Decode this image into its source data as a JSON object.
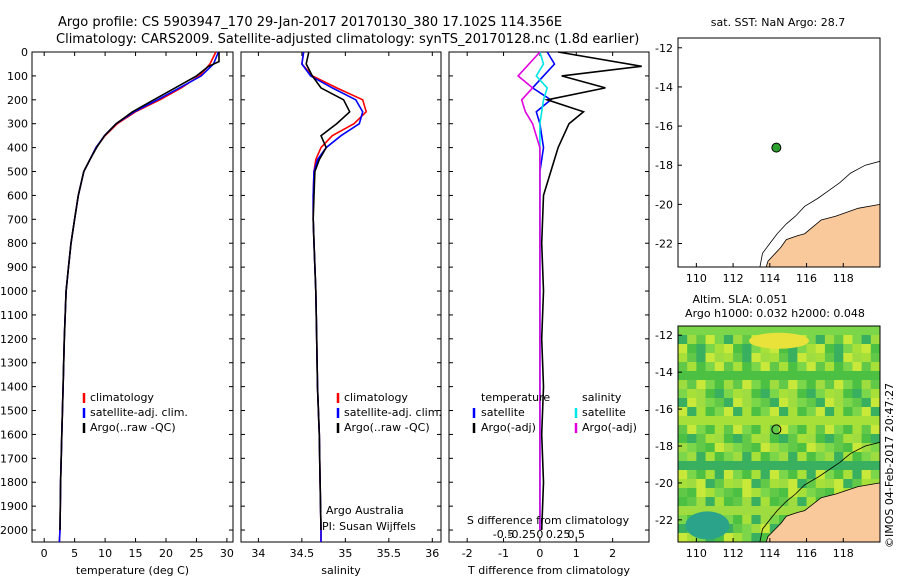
{
  "header": {
    "line1": "Argo profile: CS 5903947_170 29-Jan-2017 20170130_380 17.102S 114.356E",
    "line2": "Climatology: CARS2009. Satellite-adjusted climatology: synTS_20170128.nc (1.8d earlier)"
  },
  "credit": "©IMOS 04-Feb-2017 20:47:27",
  "colors": {
    "climatology": "#ff0000",
    "satellite": "#0000ff",
    "argo": "#000000",
    "salinity_satellite": "#00e5e5",
    "salinity_argo": "#e000e0",
    "land": "#f9c89b",
    "float_marker": "#2ca02c"
  },
  "panels": {
    "temperature": {
      "xlabel": "temperature (deg C)",
      "xticks": [
        "0",
        "5",
        "10",
        "15",
        "20",
        "25",
        "30"
      ],
      "legend": [
        "climatology",
        "satellite-adj. clim.",
        "Argo(..raw -QC)"
      ]
    },
    "salinity": {
      "xlabel": "salinity",
      "xticks": [
        "34",
        "34.5",
        "35",
        "35.5",
        "36"
      ],
      "legend": [
        "climatology",
        "satellite-adj. clim.",
        "Argo(..raw -QC)"
      ],
      "note1": "Argo Australia",
      "note2": "PI: Susan Wijffels"
    },
    "difference": {
      "xlabel": "T difference from climatology",
      "toplabel": "S difference from climatology",
      "xticks_T": [
        "-2",
        "-1",
        "0",
        "1",
        "2"
      ],
      "xticks_S": [
        "-0.5",
        "-0.25",
        "0",
        "0.25",
        "0.5"
      ],
      "legend_T_title": "temperature",
      "legend_S_title": "salinity",
      "legend_T": [
        "satellite",
        "Argo(-adj)"
      ],
      "legend_S": [
        "satellite",
        "Argo(-adj)"
      ]
    },
    "depth_ticks": [
      "0",
      "100",
      "200",
      "300",
      "400",
      "500",
      "600",
      "700",
      "800",
      "900",
      "1000",
      "1100",
      "1200",
      "1300",
      "1400",
      "1500",
      "1600",
      "1700",
      "1800",
      "1900",
      "2000"
    ]
  },
  "maps": {
    "sst": {
      "title": "sat. SST: NaN Argo: 28.7",
      "lat_ticks": [
        "-12",
        "-14",
        "-16",
        "-18",
        "-20",
        "-22"
      ],
      "lon_ticks": [
        "110",
        "112",
        "114",
        "116",
        "118"
      ]
    },
    "sla": {
      "title1": "Altim. SLA: 0.051",
      "title2": "Argo h1000: 0.032 h2000: 0.048",
      "lat_ticks": [
        "-12",
        "-14",
        "-16",
        "-18",
        "-20",
        "-22"
      ],
      "lon_ticks": [
        "110",
        "112",
        "114",
        "116",
        "118"
      ]
    }
  },
  "chart_data": [
    {
      "type": "line",
      "title": "",
      "xlabel": "temperature (deg C)",
      "ylabel": "",
      "xlim": [
        -2,
        31
      ],
      "ylim": [
        2050,
        0
      ],
      "series": [
        {
          "name": "climatology",
          "x": [
            28.2,
            27.2,
            25.5,
            22.5,
            19,
            15,
            12,
            10,
            8.5,
            7.5,
            6.5,
            5.6,
            5,
            4.4,
            4,
            3.6,
            3.3,
            3.1,
            2.9,
            2.7,
            2.6,
            2.5
          ],
          "y": [
            0,
            50,
            100,
            150,
            200,
            250,
            300,
            350,
            400,
            450,
            500,
            600,
            700,
            800,
            900,
            1000,
            1200,
            1400,
            1600,
            1800,
            2000,
            2050
          ]
        },
        {
          "name": "satellite-adj. clim.",
          "x": [
            28.6,
            27.8,
            25.8,
            22.2,
            18.6,
            14.8,
            11.8,
            9.9,
            8.5,
            7.5,
            6.5,
            5.6,
            5,
            4.4,
            4,
            3.6,
            3.3,
            3.1,
            2.9,
            2.7,
            2.6,
            2.5
          ],
          "y": [
            0,
            50,
            100,
            150,
            200,
            250,
            300,
            350,
            400,
            450,
            500,
            600,
            700,
            800,
            900,
            1000,
            1200,
            1400,
            1600,
            1800,
            2000,
            2050
          ]
        },
        {
          "name": "Argo(..raw -QC)",
          "x": [
            28.7,
            28.7,
            27,
            25,
            21.5,
            18,
            14.5,
            11.8,
            9.9,
            8.6,
            7.5,
            6.5,
            5.6,
            5,
            4.4,
            4,
            3.6,
            3.3,
            3.1,
            2.9,
            2.7,
            2.6
          ],
          "y": [
            0,
            40,
            60,
            100,
            150,
            200,
            250,
            300,
            350,
            400,
            450,
            500,
            600,
            700,
            800,
            900,
            1000,
            1200,
            1400,
            1600,
            1800,
            2000
          ]
        }
      ]
    },
    {
      "type": "line",
      "title": "",
      "xlabel": "salinity",
      "ylabel": "",
      "xlim": [
        33.8,
        36.1
      ],
      "ylim": [
        2050,
        0
      ],
      "series": [
        {
          "name": "climatology",
          "x": [
            34.52,
            34.5,
            34.62,
            34.9,
            35.2,
            35.24,
            35.1,
            34.85,
            34.72,
            34.66,
            34.64,
            34.63,
            34.63,
            34.64,
            34.65,
            34.66,
            34.67,
            34.68,
            34.7,
            34.71,
            34.72,
            34.72
          ],
          "y": [
            0,
            50,
            100,
            150,
            200,
            250,
            300,
            350,
            400,
            450,
            500,
            600,
            700,
            800,
            900,
            1000,
            1200,
            1400,
            1600,
            1800,
            2000,
            2050
          ]
        },
        {
          "name": "satellite-adj. clim.",
          "x": [
            34.52,
            34.5,
            34.6,
            34.85,
            35.12,
            35.2,
            35.16,
            34.95,
            34.78,
            34.68,
            34.64,
            34.63,
            34.63,
            34.64,
            34.65,
            34.66,
            34.67,
            34.68,
            34.7,
            34.71,
            34.72,
            34.72
          ],
          "y": [
            0,
            50,
            100,
            150,
            200,
            250,
            300,
            350,
            400,
            450,
            500,
            600,
            700,
            800,
            900,
            1000,
            1200,
            1400,
            1600,
            1800,
            2000,
            2050
          ]
        },
        {
          "name": "Argo(..raw -QC)",
          "x": [
            34.58,
            34.55,
            34.62,
            34.72,
            34.98,
            35.05,
            34.9,
            34.72,
            34.78,
            34.7,
            34.65,
            34.64,
            34.63,
            34.64,
            34.65,
            34.66,
            34.67,
            34.68,
            34.7,
            34.71,
            34.72
          ],
          "y": [
            0,
            50,
            100,
            150,
            200,
            250,
            300,
            350,
            400,
            450,
            500,
            600,
            700,
            800,
            900,
            1000,
            1200,
            1400,
            1600,
            1800,
            2000
          ]
        }
      ]
    },
    {
      "type": "line",
      "title": "",
      "xlabel": "T difference from climatology",
      "ylabel": "",
      "xlim": [
        -2.5,
        3
      ],
      "ylim": [
        2050,
        0
      ],
      "series": [
        {
          "name": "temperature satellite",
          "x": [
            0.2,
            0.4,
            0.1,
            -0.2,
            0.3,
            -0.1,
            0,
            0.1,
            0,
            0,
            0,
            0,
            0,
            0,
            0,
            0
          ],
          "y": [
            0,
            50,
            100,
            150,
            200,
            250,
            300,
            400,
            500,
            700,
            900,
            1100,
            1300,
            1500,
            1800,
            2000
          ]
        },
        {
          "name": "temperature Argo(-adj)",
          "x": [
            0.5,
            2.8,
            0.6,
            1.8,
            0.2,
            1.2,
            0.8,
            0.5,
            0.3,
            0.1,
            0.05,
            0.1,
            0.05,
            0.1,
            0.05,
            0.1,
            0.05
          ],
          "y": [
            0,
            60,
            100,
            150,
            200,
            250,
            300,
            400,
            500,
            600,
            800,
            1000,
            1200,
            1400,
            1600,
            1800,
            2000
          ]
        },
        {
          "name": "salinity satellite",
          "x": [
            0,
            0.1,
            -0.1,
            0.2,
            0.1,
            0,
            0,
            0,
            0,
            0,
            0,
            0,
            0
          ],
          "y": [
            0,
            50,
            100,
            150,
            200,
            300,
            400,
            600,
            800,
            1000,
            1400,
            1800,
            2000
          ]
        },
        {
          "name": "salinity Argo(-adj)",
          "x": [
            0,
            -0.3,
            -0.6,
            -0.2,
            -0.5,
            -0.4,
            -0.2,
            0,
            0,
            0,
            0
          ],
          "y": [
            0,
            50,
            100,
            150,
            200,
            250,
            300,
            400,
            600,
            1000,
            2000
          ]
        }
      ]
    },
    {
      "type": "scatter",
      "title": "sat. SST: NaN Argo: 28.7",
      "xlabel": "",
      "ylabel": "",
      "xlim": [
        109,
        120
      ],
      "ylim": [
        -23.2,
        -11.5
      ],
      "points": [
        {
          "x": 114.356,
          "y": -17.102
        }
      ]
    },
    {
      "type": "heatmap",
      "title": "Altim. SLA: 0.051",
      "xlabel": "",
      "ylabel": "",
      "xlim": [
        109,
        120
      ],
      "ylim": [
        -23.2,
        -11.5
      ],
      "points": [
        {
          "x": 114.356,
          "y": -17.102
        }
      ]
    }
  ]
}
